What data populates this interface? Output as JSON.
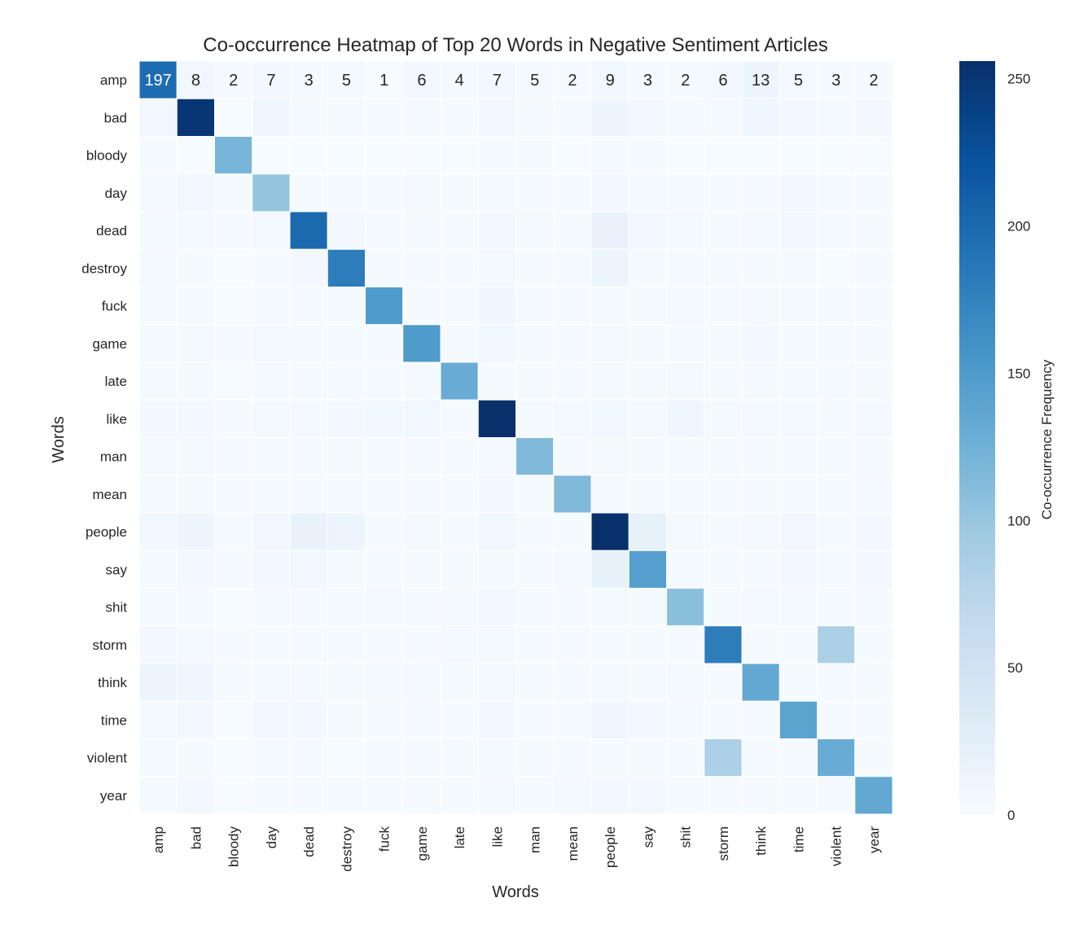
{
  "chart_data": {
    "type": "heatmap",
    "title": "Co-occurrence Heatmap of Top 20 Words in Negative Sentiment Articles",
    "xlabel": "Words",
    "ylabel": "Words",
    "colorbar_label": "Co-occurrence Frequency",
    "colorbar_ticks": [
      0,
      50,
      100,
      150,
      200,
      250
    ],
    "vmin": 0,
    "vmax": 256,
    "colormap": [
      "#f7fbff",
      "#deebf7",
      "#c6dbef",
      "#9ecae1",
      "#6baed6",
      "#4292c6",
      "#2171b5",
      "#08519c",
      "#08306b"
    ],
    "grid": false,
    "labels": [
      "amp",
      "bad",
      "bloody",
      "day",
      "dead",
      "destroy",
      "fuck",
      "game",
      "late",
      "like",
      "man",
      "mean",
      "people",
      "say",
      "shit",
      "storm",
      "think",
      "time",
      "violent",
      "year"
    ],
    "annotated_row": 0,
    "matrix": [
      [
        197,
        8,
        2,
        7,
        3,
        5,
        1,
        6,
        4,
        7,
        5,
        2,
        9,
        3,
        2,
        6,
        13,
        5,
        3,
        2
      ],
      [
        8,
        250,
        1,
        10,
        4,
        3,
        2,
        3,
        2,
        6,
        4,
        3,
        12,
        6,
        3,
        4,
        10,
        6,
        2,
        7
      ],
      [
        2,
        1,
        120,
        1,
        1,
        1,
        1,
        1,
        1,
        2,
        2,
        1,
        2,
        2,
        1,
        1,
        1,
        1,
        1,
        1
      ],
      [
        5,
        9,
        2,
        102,
        3,
        2,
        2,
        4,
        3,
        4,
        3,
        2,
        6,
        5,
        2,
        3,
        3,
        6,
        2,
        3
      ],
      [
        4,
        5,
        2,
        5,
        200,
        6,
        2,
        3,
        2,
        7,
        4,
        3,
        18,
        8,
        4,
        3,
        4,
        6,
        2,
        3
      ],
      [
        5,
        3,
        1,
        2,
        6,
        180,
        2,
        2,
        2,
        5,
        3,
        2,
        14,
        3,
        2,
        2,
        3,
        3,
        1,
        2
      ],
      [
        2,
        3,
        1,
        2,
        2,
        2,
        150,
        2,
        2,
        10,
        3,
        2,
        3,
        3,
        5,
        2,
        4,
        3,
        2,
        2
      ],
      [
        3,
        4,
        2,
        5,
        3,
        2,
        2,
        150,
        2,
        9,
        3,
        2,
        4,
        3,
        2,
        3,
        6,
        3,
        2,
        3
      ],
      [
        3,
        2,
        1,
        2,
        2,
        2,
        2,
        2,
        130,
        3,
        2,
        2,
        3,
        3,
        4,
        3,
        3,
        2,
        2,
        3
      ],
      [
        6,
        6,
        3,
        4,
        5,
        6,
        9,
        9,
        3,
        256,
        4,
        5,
        9,
        4,
        10,
        4,
        5,
        5,
        3,
        5
      ],
      [
        4,
        4,
        3,
        3,
        3,
        3,
        3,
        3,
        2,
        5,
        115,
        2,
        4,
        3,
        3,
        3,
        3,
        3,
        2,
        3
      ],
      [
        3,
        3,
        2,
        3,
        3,
        2,
        2,
        2,
        2,
        6,
        2,
        115,
        3,
        3,
        2,
        2,
        3,
        3,
        2,
        5
      ],
      [
        9,
        12,
        3,
        8,
        18,
        14,
        3,
        4,
        3,
        9,
        3,
        3,
        256,
        20,
        4,
        3,
        4,
        8,
        3,
        6
      ],
      [
        3,
        6,
        2,
        7,
        8,
        3,
        3,
        3,
        3,
        4,
        3,
        4,
        20,
        145,
        3,
        3,
        3,
        6,
        2,
        6
      ],
      [
        2,
        3,
        1,
        2,
        4,
        2,
        5,
        2,
        4,
        9,
        3,
        2,
        4,
        3,
        108,
        3,
        5,
        3,
        2,
        3
      ],
      [
        6,
        4,
        2,
        3,
        3,
        2,
        2,
        2,
        5,
        4,
        3,
        2,
        3,
        3,
        3,
        180,
        3,
        3,
        85,
        3
      ],
      [
        13,
        10,
        2,
        3,
        4,
        3,
        4,
        5,
        3,
        5,
        3,
        3,
        4,
        3,
        5,
        3,
        135,
        3,
        2,
        3
      ],
      [
        5,
        8,
        1,
        6,
        6,
        3,
        3,
        3,
        2,
        6,
        3,
        3,
        10,
        8,
        4,
        3,
        3,
        140,
        2,
        3
      ],
      [
        3,
        2,
        1,
        2,
        2,
        1,
        2,
        2,
        2,
        3,
        2,
        2,
        3,
        2,
        2,
        85,
        2,
        2,
        130,
        2
      ],
      [
        2,
        7,
        1,
        3,
        3,
        2,
        2,
        3,
        3,
        5,
        3,
        5,
        6,
        6,
        3,
        3,
        3,
        3,
        2,
        135
      ]
    ]
  }
}
